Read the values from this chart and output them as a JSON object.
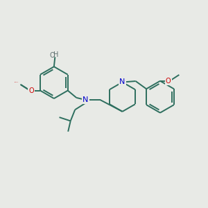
{
  "background_color": "#e8eae6",
  "bond_color": "#2d6e5e",
  "nitrogen_color": "#0000cc",
  "oxygen_color": "#cc0000",
  "oh_color": "#607070",
  "figsize": [
    3.0,
    3.0
  ],
  "dpi": 100,
  "xlim": [
    0,
    10
  ],
  "ylim": [
    0,
    10
  ]
}
